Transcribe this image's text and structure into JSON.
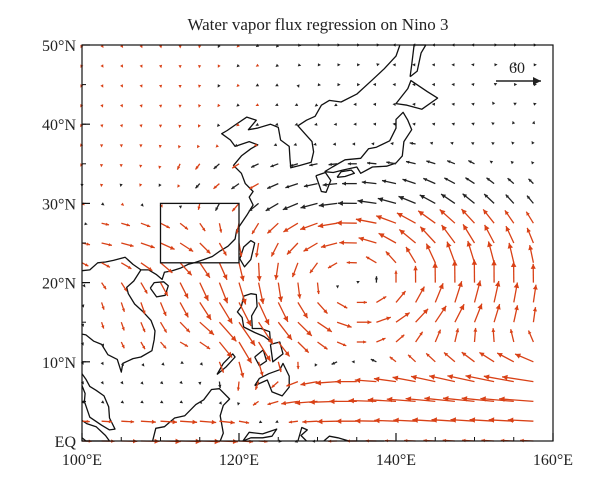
{
  "title": "Water vapor flux regression on Nino 3",
  "reference_vector": {
    "label": "60",
    "magnitude": 60
  },
  "colors": {
    "significant": "#d94116",
    "insignificant": "#222222",
    "coast": "#111111"
  },
  "chart_data": {
    "type": "vector-field",
    "xlim": [
      100,
      160
    ],
    "ylim": [
      0,
      50
    ],
    "x_ticks": [
      {
        "value": 100,
        "label": "100°E"
      },
      {
        "value": 120,
        "label": "120°E"
      },
      {
        "value": 140,
        "label": "140°E"
      },
      {
        "value": 160,
        "label": "160°E"
      }
    ],
    "y_ticks": [
      {
        "value": 0,
        "label": "EQ"
      },
      {
        "value": 10,
        "label": "10°N"
      },
      {
        "value": 20,
        "label": "20°N"
      },
      {
        "value": 30,
        "label": "30°N"
      },
      {
        "value": 40,
        "label": "40°N"
      },
      {
        "value": 50,
        "label": "50°N"
      }
    ],
    "region_box": {
      "lon": [
        110,
        120
      ],
      "lat": [
        22.5,
        30
      ]
    },
    "grid_spacing_deg": 2.5,
    "legend": "reference vector at top-right"
  }
}
